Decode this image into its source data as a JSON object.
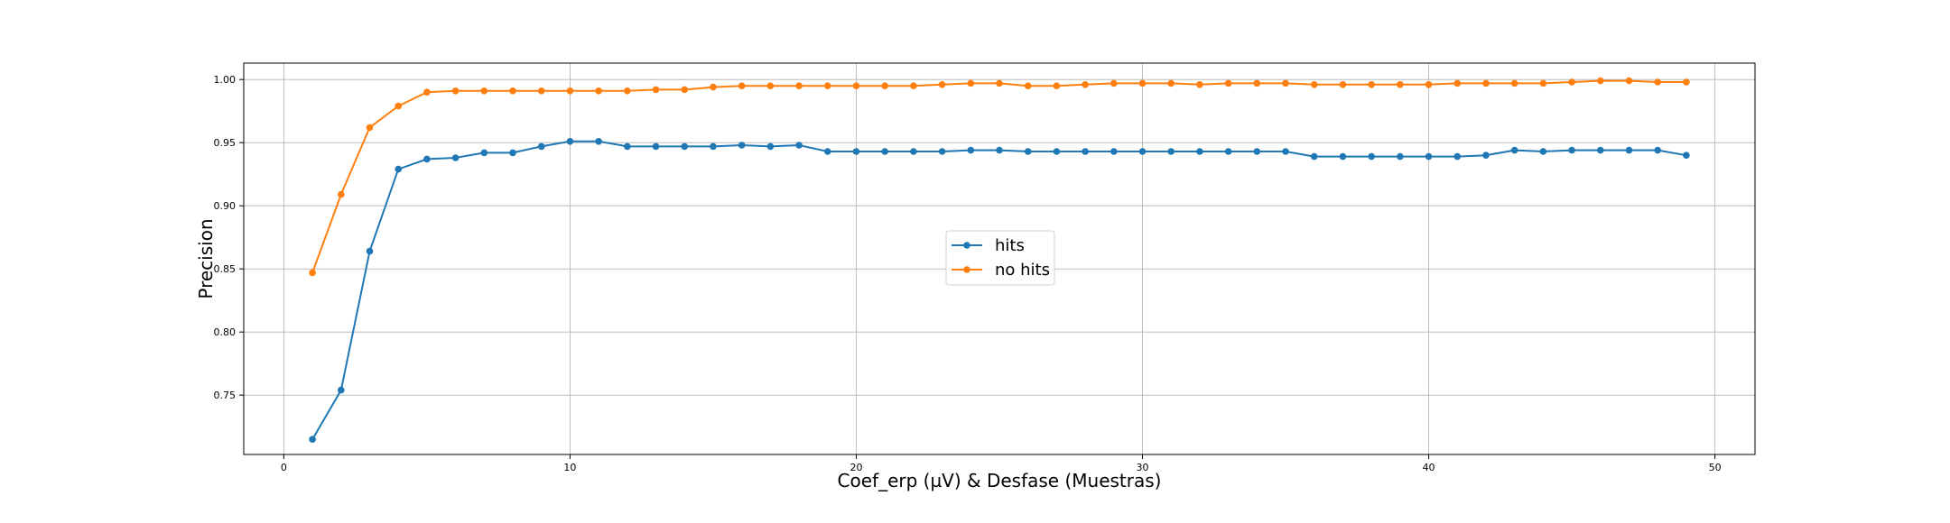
{
  "chart_data": {
    "type": "line",
    "title": "",
    "xlabel": "Coef_erp (µV) & Desfase (Muestras)",
    "ylabel": "Precision",
    "xlim": [
      -1.4,
      51.4
    ],
    "ylim": [
      0.703,
      1.013
    ],
    "xticks": [
      0,
      10,
      20,
      30,
      40,
      50
    ],
    "xtick_labels": [
      "0",
      "10",
      "20",
      "30",
      "40",
      "50"
    ],
    "yticks": [
      0.75,
      0.8,
      0.85,
      0.9,
      0.95,
      1.0
    ],
    "ytick_labels": [
      "0.75",
      "0.80",
      "0.85",
      "0.90",
      "0.95",
      "1.00"
    ],
    "grid": true,
    "legend_position": "center",
    "x": [
      1,
      2,
      3,
      4,
      5,
      6,
      7,
      8,
      9,
      10,
      11,
      12,
      13,
      14,
      15,
      16,
      17,
      18,
      19,
      20,
      21,
      22,
      23,
      24,
      25,
      26,
      27,
      28,
      29,
      30,
      31,
      32,
      33,
      34,
      35,
      36,
      37,
      38,
      39,
      40,
      41,
      42,
      43,
      44,
      45,
      46,
      47,
      48,
      49
    ],
    "series": [
      {
        "name": "hits",
        "color": "#1f77b4",
        "values": [
          0.715,
          0.754,
          0.864,
          0.929,
          0.937,
          0.938,
          0.942,
          0.942,
          0.947,
          0.951,
          0.951,
          0.947,
          0.947,
          0.947,
          0.947,
          0.948,
          0.947,
          0.948,
          0.943,
          0.943,
          0.943,
          0.943,
          0.943,
          0.944,
          0.944,
          0.943,
          0.943,
          0.943,
          0.943,
          0.943,
          0.943,
          0.943,
          0.943,
          0.943,
          0.943,
          0.939,
          0.939,
          0.939,
          0.939,
          0.939,
          0.939,
          0.94,
          0.944,
          0.943,
          0.944,
          0.944,
          0.944,
          0.944,
          0.94
        ]
      },
      {
        "name": "no hits",
        "color": "#ff7f0e",
        "values": [
          0.847,
          0.909,
          0.962,
          0.979,
          0.99,
          0.991,
          0.991,
          0.991,
          0.991,
          0.991,
          0.991,
          0.991,
          0.992,
          0.992,
          0.994,
          0.995,
          0.995,
          0.995,
          0.995,
          0.995,
          0.995,
          0.995,
          0.996,
          0.997,
          0.997,
          0.995,
          0.995,
          0.996,
          0.997,
          0.997,
          0.997,
          0.996,
          0.997,
          0.997,
          0.997,
          0.996,
          0.996,
          0.996,
          0.996,
          0.996,
          0.997,
          0.997,
          0.997,
          0.997,
          0.998,
          0.999,
          0.999,
          0.998,
          0.998
        ]
      }
    ]
  }
}
